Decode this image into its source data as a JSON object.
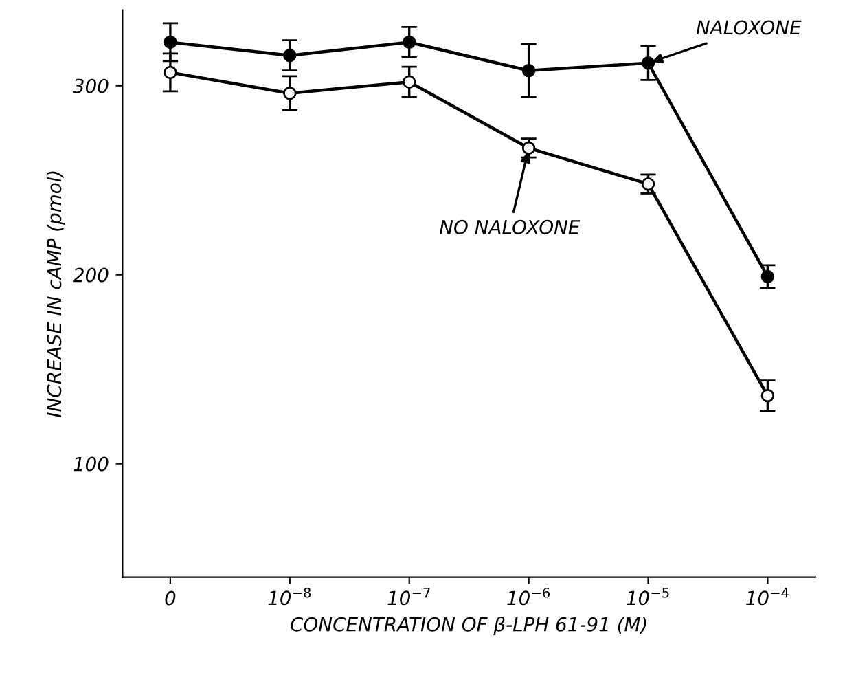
{
  "chart_data": {
    "type": "line",
    "xlabel": "CONCENTRATION OF β-LPH 61-91 (M)",
    "ylabel": "INCREASE IN cAMP (pmol)",
    "categories": [
      "0",
      "10$^{−8}$",
      "10$^{−7}$",
      "10$^{−6}$",
      "10$^{−5}$",
      "10$^{−4}$"
    ],
    "series": [
      {
        "name": "NALOXONE",
        "color": "#000000",
        "values": [
          323,
          316,
          323,
          308,
          312,
          199
        ],
        "errors": [
          10,
          8,
          8,
          14,
          9,
          6
        ]
      },
      {
        "name": "NO NALOXONE",
        "color": "#000000",
        "values": [
          307,
          296,
          302,
          267,
          248,
          136
        ],
        "errors": [
          10,
          9,
          8,
          5,
          5,
          8
        ]
      }
    ],
    "ylim": [
      40,
      340
    ],
    "yticks": [
      100,
      200,
      300
    ],
    "marker": "circle",
    "line_style": "solid",
    "grid": false,
    "legend": false
  }
}
